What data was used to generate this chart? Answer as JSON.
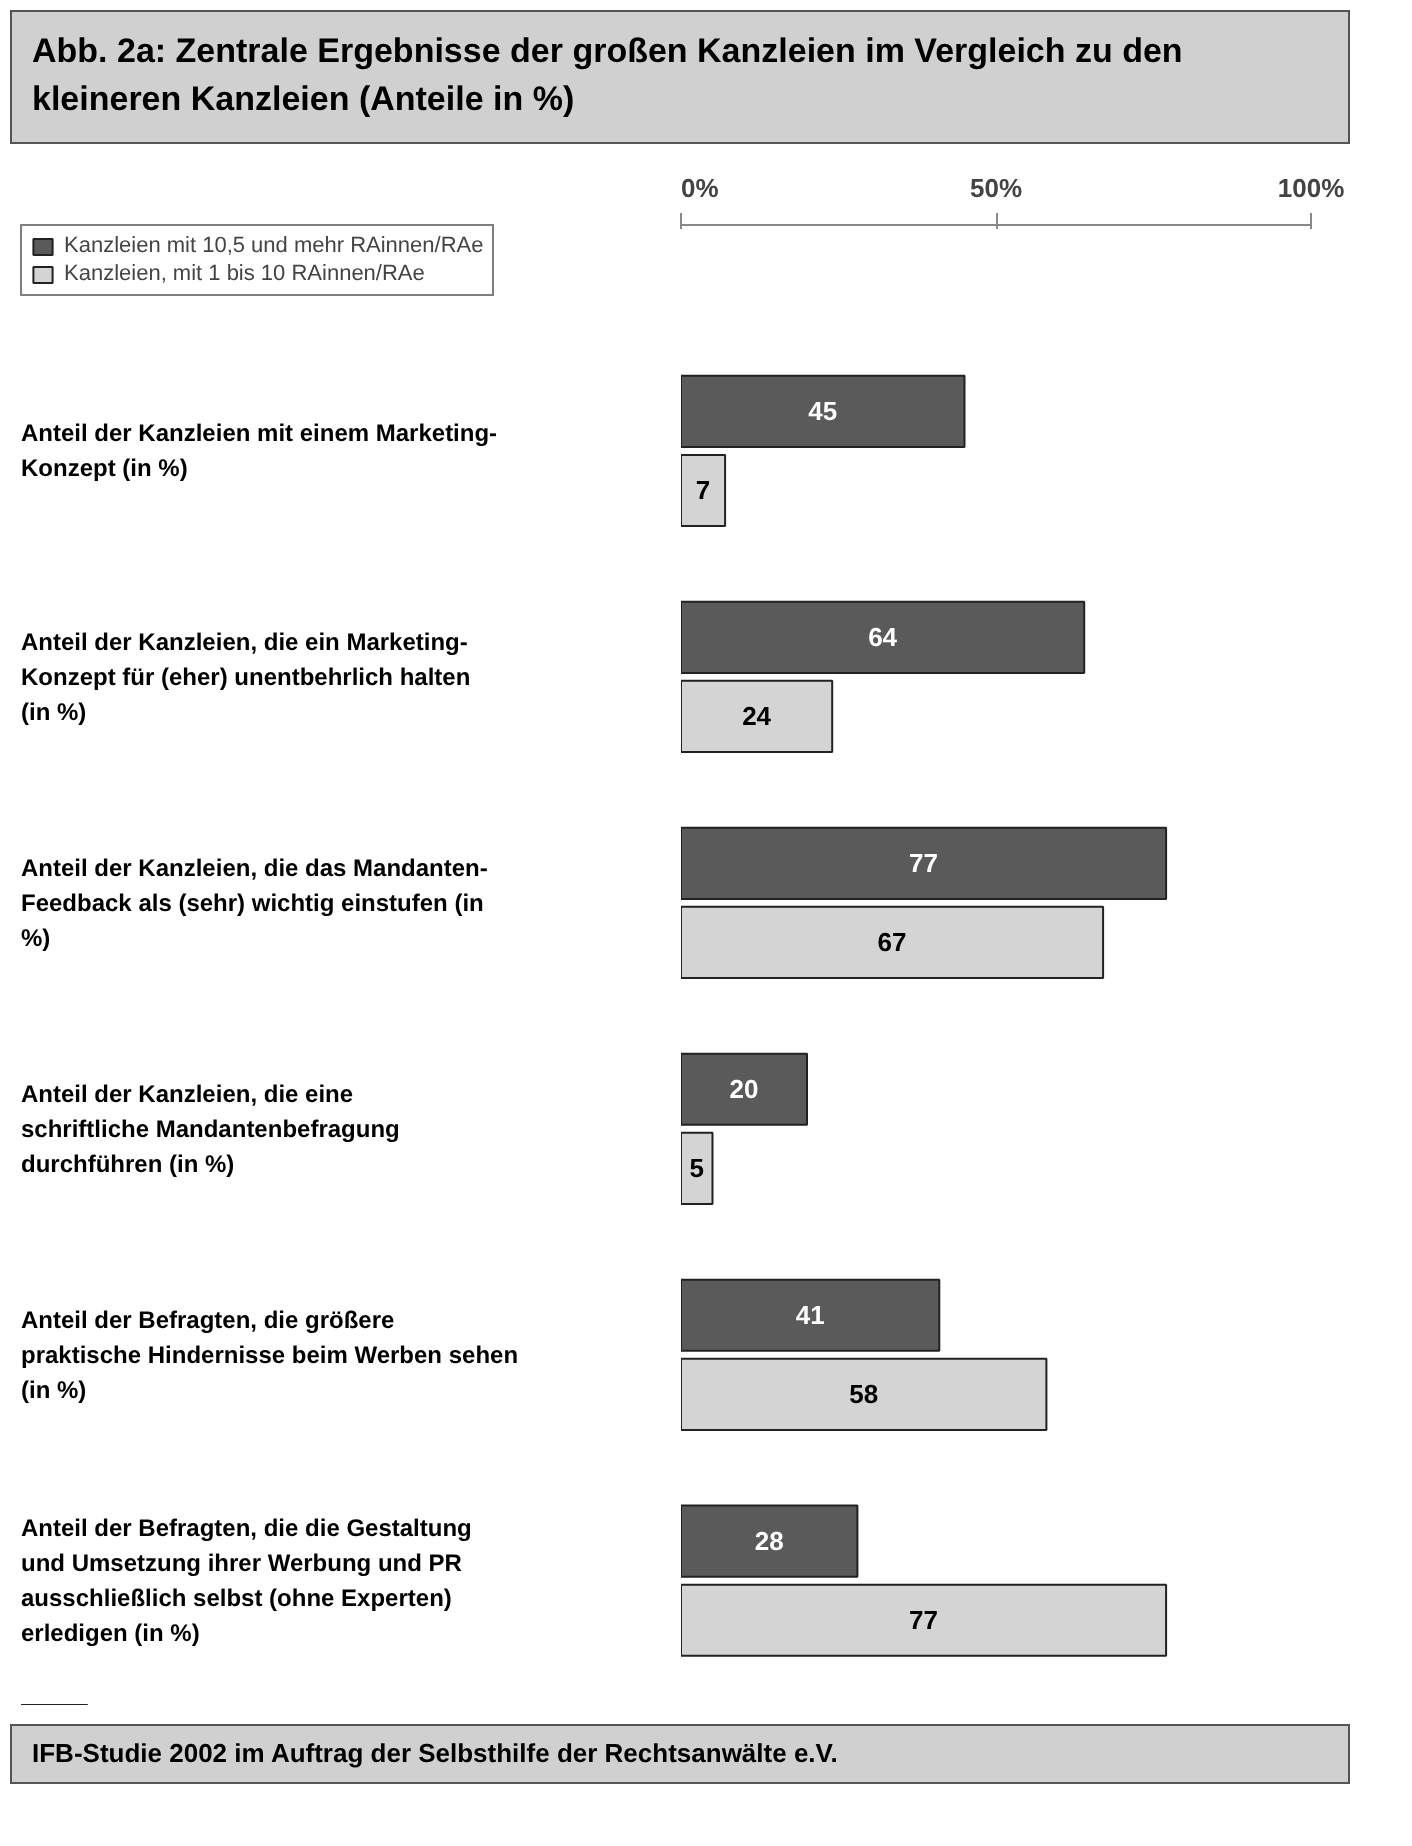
{
  "chart_data": {
    "type": "bar",
    "orientation": "horizontal",
    "title": "Abb. 2a: Zentrale Ergebnisse der großen Kanzleien im Vergleich zu den kleineren Kanzleien (Anteile in %)",
    "categories": [
      "Anteil der Kanzleien mit einem Marketing-Konzept (in %)",
      "Anteil der Kanzleien, die ein Marketing-Konzept für (eher) unentbehrlich halten (in %)",
      "Anteil der Kanzleien, die das Mandanten-Feedback als (sehr) wichtig einstufen (in %)",
      "Anteil der Kanzleien, die eine schriftliche Mandantenbefragung durchführen (in %)",
      "Anteil der Befragten, die größere praktische Hindernisse beim Werben sehen (in %)",
      "Anteil der Befragten, die die Gestaltung und Umsetzung ihrer Werbung und PR ausschließlich selbst (ohne Experten) erledigen (in %)"
    ],
    "series": [
      {
        "name": "Kanzleien mit 10,5 und mehr RAinnen/RAe",
        "color": "#5a5a5a",
        "values": [
          45,
          64,
          77,
          20,
          41,
          28
        ]
      },
      {
        "name": "Kanzleien, mit 1 bis 10 RAinnen/RAe",
        "color": "#d4d4d4",
        "values": [
          7,
          24,
          67,
          5,
          58,
          77
        ]
      }
    ],
    "xlim": [
      0,
      100
    ],
    "xticks": [
      {
        "value": 0,
        "label": "0%"
      },
      {
        "value": 50,
        "label": "50%"
      },
      {
        "value": 100,
        "label": "100%"
      }
    ],
    "data_labels": true,
    "legend": "top left",
    "grid": false,
    "annotations": [
      "IFB-Studie 2002 im Auftrag der Selbsthilfe der Rechtsanwälte e.V."
    ]
  }
}
